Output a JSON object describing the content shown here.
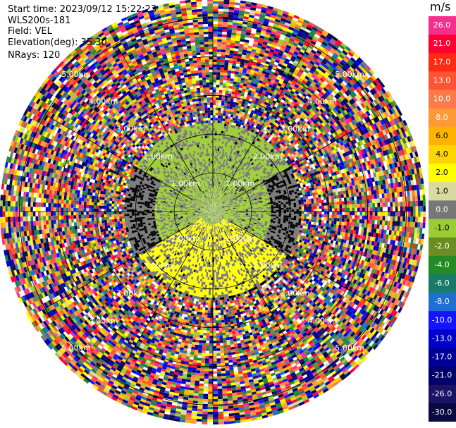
{
  "header": {
    "start_time": "Start time: 2023/09/12 15:22:23",
    "station": "WLS200s-181",
    "field": "Field: VEL",
    "elevation": "Elevation(deg): 35.30",
    "nrays": "NRays: 120"
  },
  "colorbar": {
    "title": "m/s",
    "bins": [
      {
        "label": "26.0",
        "color": "#f72f8c"
      },
      {
        "label": "21.0",
        "color": "#ff0033"
      },
      {
        "label": "17.0",
        "color": "#ff2a12"
      },
      {
        "label": "13.0",
        "color": "#ff5533"
      },
      {
        "label": "10.0",
        "color": "#ff7a4a"
      },
      {
        "label": "8.0",
        "color": "#ff9933"
      },
      {
        "label": "6.0",
        "color": "#ffb300"
      },
      {
        "label": "4.0",
        "color": "#ffd500"
      },
      {
        "label": "2.0",
        "color": "#ffff00"
      },
      {
        "label": "1.0",
        "color": "#d9d9a0"
      },
      {
        "label": "0.0",
        "color": "#777777"
      },
      {
        "label": "-1.0",
        "color": "#9acd32"
      },
      {
        "label": "-2.0",
        "color": "#6b8e23"
      },
      {
        "label": "-4.0",
        "color": "#228b22"
      },
      {
        "label": "-6.0",
        "color": "#1a7a6a"
      },
      {
        "label": "-8.0",
        "color": "#1e6fd0"
      },
      {
        "label": "-10.0",
        "color": "#1414ff"
      },
      {
        "label": "-13.0",
        "color": "#0000cd"
      },
      {
        "label": "-17.0",
        "color": "#000099"
      },
      {
        "label": "-21.0",
        "color": "#00006b"
      },
      {
        "label": "-26.0",
        "color": "#1b1464"
      },
      {
        "label": "-30.0",
        "color": "#0a0a40"
      }
    ]
  },
  "chart_data": {
    "type": "ppi",
    "field": "VEL",
    "units": "m/s",
    "nrays": 120,
    "range_rings_km": [
      1.0,
      2.0,
      3.0,
      4.0,
      5.0
    ],
    "range_ring_labels": [
      "1.00km",
      "2.00km",
      "3.00km",
      "4.00km",
      "5.00km"
    ],
    "max_range_km": 5.5,
    "ring_label_angles_deg": [
      45,
      135,
      225,
      315
    ],
    "azimuth_spokes_deg": [
      0,
      30,
      60,
      90,
      120,
      150,
      180,
      210,
      240,
      270,
      300,
      330
    ],
    "velocity_range": [
      -30.0,
      26.0
    ],
    "regions": [
      {
        "description": "near-origin ring of negative velocity",
        "r_range_km": [
          0.0,
          1.5
        ],
        "azimuth_range_deg": [
          0,
          360
        ],
        "value": -1.0
      },
      {
        "description": "approaching region north",
        "r_range_km": [
          1.0,
          2.3
        ],
        "azimuth_range_deg": [
          300,
          60
        ],
        "value": -1.0
      },
      {
        "description": "receding region south",
        "r_range_km": [
          0.3,
          2.2
        ],
        "azimuth_range_deg": [
          120,
          240
        ],
        "value": 2.0
      },
      {
        "description": "noise beyond ~2.3 km",
        "r_range_km": [
          2.3,
          5.5
        ],
        "azimuth_range_deg": [
          0,
          360
        ],
        "value": null
      }
    ]
  }
}
